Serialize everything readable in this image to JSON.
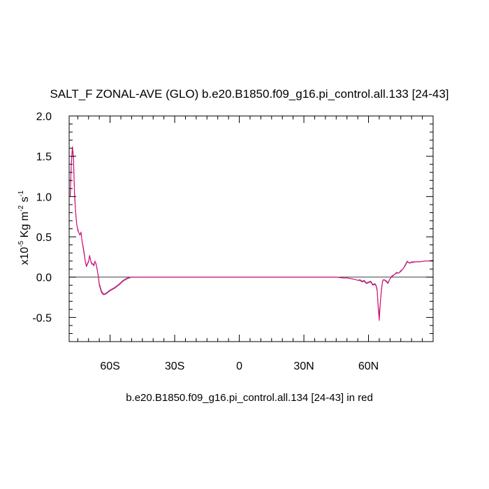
{
  "chart_data": {
    "type": "line",
    "title": "SALT_F ZONAL-AVE (GLO) b.e20.B1850.f09_g16.pi_control.all.133 [24-43]",
    "ylabel_prefix": "x10",
    "ylabel_exp": "-5",
    "ylabel_unit1": " Kg m",
    "ylabel_unit1_exp": "-2",
    "ylabel_unit2": " s",
    "ylabel_unit2_exp": "-1",
    "footer": "b.e20.B1850.f09_g16.pi_control.all.134 [24-43] in red",
    "xlim": [
      -79,
      90
    ],
    "ylim": [
      -0.8,
      2.0
    ],
    "xticks": [
      {
        "value": -60,
        "label": "60S"
      },
      {
        "value": -30,
        "label": "30S"
      },
      {
        "value": 0,
        "label": "0"
      },
      {
        "value": 30,
        "label": "30N"
      },
      {
        "value": 60,
        "label": "60N"
      }
    ],
    "yticks": [
      {
        "value": -0.5,
        "label": "-0.5"
      },
      {
        "value": 0.0,
        "label": "0.0"
      },
      {
        "value": 0.5,
        "label": "0.5"
      },
      {
        "value": 1.0,
        "label": "1.0"
      },
      {
        "value": 1.5,
        "label": "1.5"
      },
      {
        "value": 2.0,
        "label": "2.0"
      }
    ],
    "zero_line": true,
    "colors": {
      "series_133": "#7b3fa0",
      "series_134": "#e0006a"
    },
    "series": [
      {
        "key": "series_133",
        "x": [
          -78.5,
          -78,
          -77.5,
          -77,
          -76.5,
          -76,
          -75.5,
          -75,
          -74.5,
          -74,
          -73.5,
          -73,
          -72.5,
          -72,
          -71.5,
          -71,
          -70,
          -69.5,
          -69,
          -68.5,
          -68,
          -67.5,
          -67,
          -66.5,
          -66,
          -65.5,
          -65,
          -64,
          -63,
          -62,
          -61,
          -60,
          -58,
          -56,
          -54,
          -52,
          -50,
          -48,
          -45,
          0,
          30,
          45,
          48,
          50,
          52,
          54,
          55,
          56,
          57,
          58,
          59,
          60,
          61,
          62,
          63,
          63.5,
          64,
          64.5,
          65,
          65.5,
          66,
          66.5,
          67,
          68,
          69,
          70,
          71,
          72,
          73,
          74,
          75,
          76,
          77,
          78,
          79,
          80,
          82,
          84,
          86,
          88,
          90
        ],
        "y": [
          1.0,
          1.4,
          1.6,
          1.45,
          1.0,
          0.8,
          0.65,
          0.6,
          0.55,
          0.53,
          0.55,
          0.45,
          0.38,
          0.3,
          0.2,
          0.14,
          0.2,
          0.26,
          0.2,
          0.16,
          0.17,
          0.15,
          0.19,
          0.17,
          0.1,
          0.02,
          -0.08,
          -0.17,
          -0.21,
          -0.2,
          -0.18,
          -0.16,
          -0.13,
          -0.09,
          -0.04,
          -0.01,
          0.0,
          0.0,
          0.0,
          0.0,
          0.0,
          0.0,
          -0.01,
          -0.01,
          -0.02,
          -0.03,
          -0.04,
          -0.03,
          -0.05,
          -0.04,
          -0.07,
          -0.06,
          -0.05,
          -0.09,
          -0.08,
          -0.1,
          -0.15,
          -0.35,
          -0.48,
          -0.3,
          -0.15,
          -0.05,
          -0.03,
          -0.05,
          -0.08,
          -0.02,
          0.02,
          0.03,
          0.06,
          0.05,
          0.07,
          0.1,
          0.15,
          0.2,
          0.17,
          0.19,
          0.19,
          0.19,
          0.2,
          0.2,
          0.21
        ]
      },
      {
        "key": "series_134",
        "x": [
          -78.5,
          -78,
          -77.5,
          -77,
          -76.5,
          -76,
          -75.5,
          -75,
          -74.5,
          -74,
          -73.5,
          -73,
          -72.5,
          -72,
          -71.5,
          -71,
          -70,
          -69.5,
          -69,
          -68.5,
          -68,
          -67.5,
          -67,
          -66.5,
          -66,
          -65.5,
          -65,
          -64,
          -63,
          -62,
          -61,
          -60,
          -58,
          -56,
          -54,
          -52,
          -50,
          -48,
          -45,
          0,
          30,
          45,
          48,
          50,
          52,
          54,
          55,
          56,
          57,
          58,
          59,
          60,
          61,
          62,
          63,
          63.5,
          64,
          64.5,
          65,
          65.5,
          66,
          66.5,
          67,
          68,
          69,
          70,
          71,
          72,
          73,
          74,
          75,
          76,
          77,
          78,
          79,
          80,
          82,
          84,
          86,
          88,
          90
        ],
        "y": [
          1.0,
          1.42,
          1.62,
          1.5,
          1.05,
          0.82,
          0.66,
          0.58,
          0.55,
          0.52,
          0.56,
          0.44,
          0.36,
          0.28,
          0.19,
          0.13,
          0.19,
          0.27,
          0.21,
          0.17,
          0.16,
          0.14,
          0.2,
          0.16,
          0.09,
          0.01,
          -0.1,
          -0.19,
          -0.22,
          -0.21,
          -0.19,
          -0.17,
          -0.14,
          -0.1,
          -0.05,
          -0.02,
          0.0,
          0.0,
          0.0,
          0.0,
          0.0,
          0.0,
          -0.01,
          -0.01,
          -0.02,
          -0.03,
          -0.04,
          -0.04,
          -0.06,
          -0.05,
          -0.08,
          -0.07,
          -0.06,
          -0.1,
          -0.09,
          -0.11,
          -0.17,
          -0.38,
          -0.54,
          -0.32,
          -0.17,
          -0.06,
          -0.03,
          -0.04,
          -0.07,
          -0.02,
          0.01,
          0.03,
          0.05,
          0.05,
          0.08,
          0.1,
          0.14,
          0.19,
          0.18,
          0.18,
          0.19,
          0.19,
          0.2,
          0.2,
          0.2
        ]
      }
    ]
  }
}
